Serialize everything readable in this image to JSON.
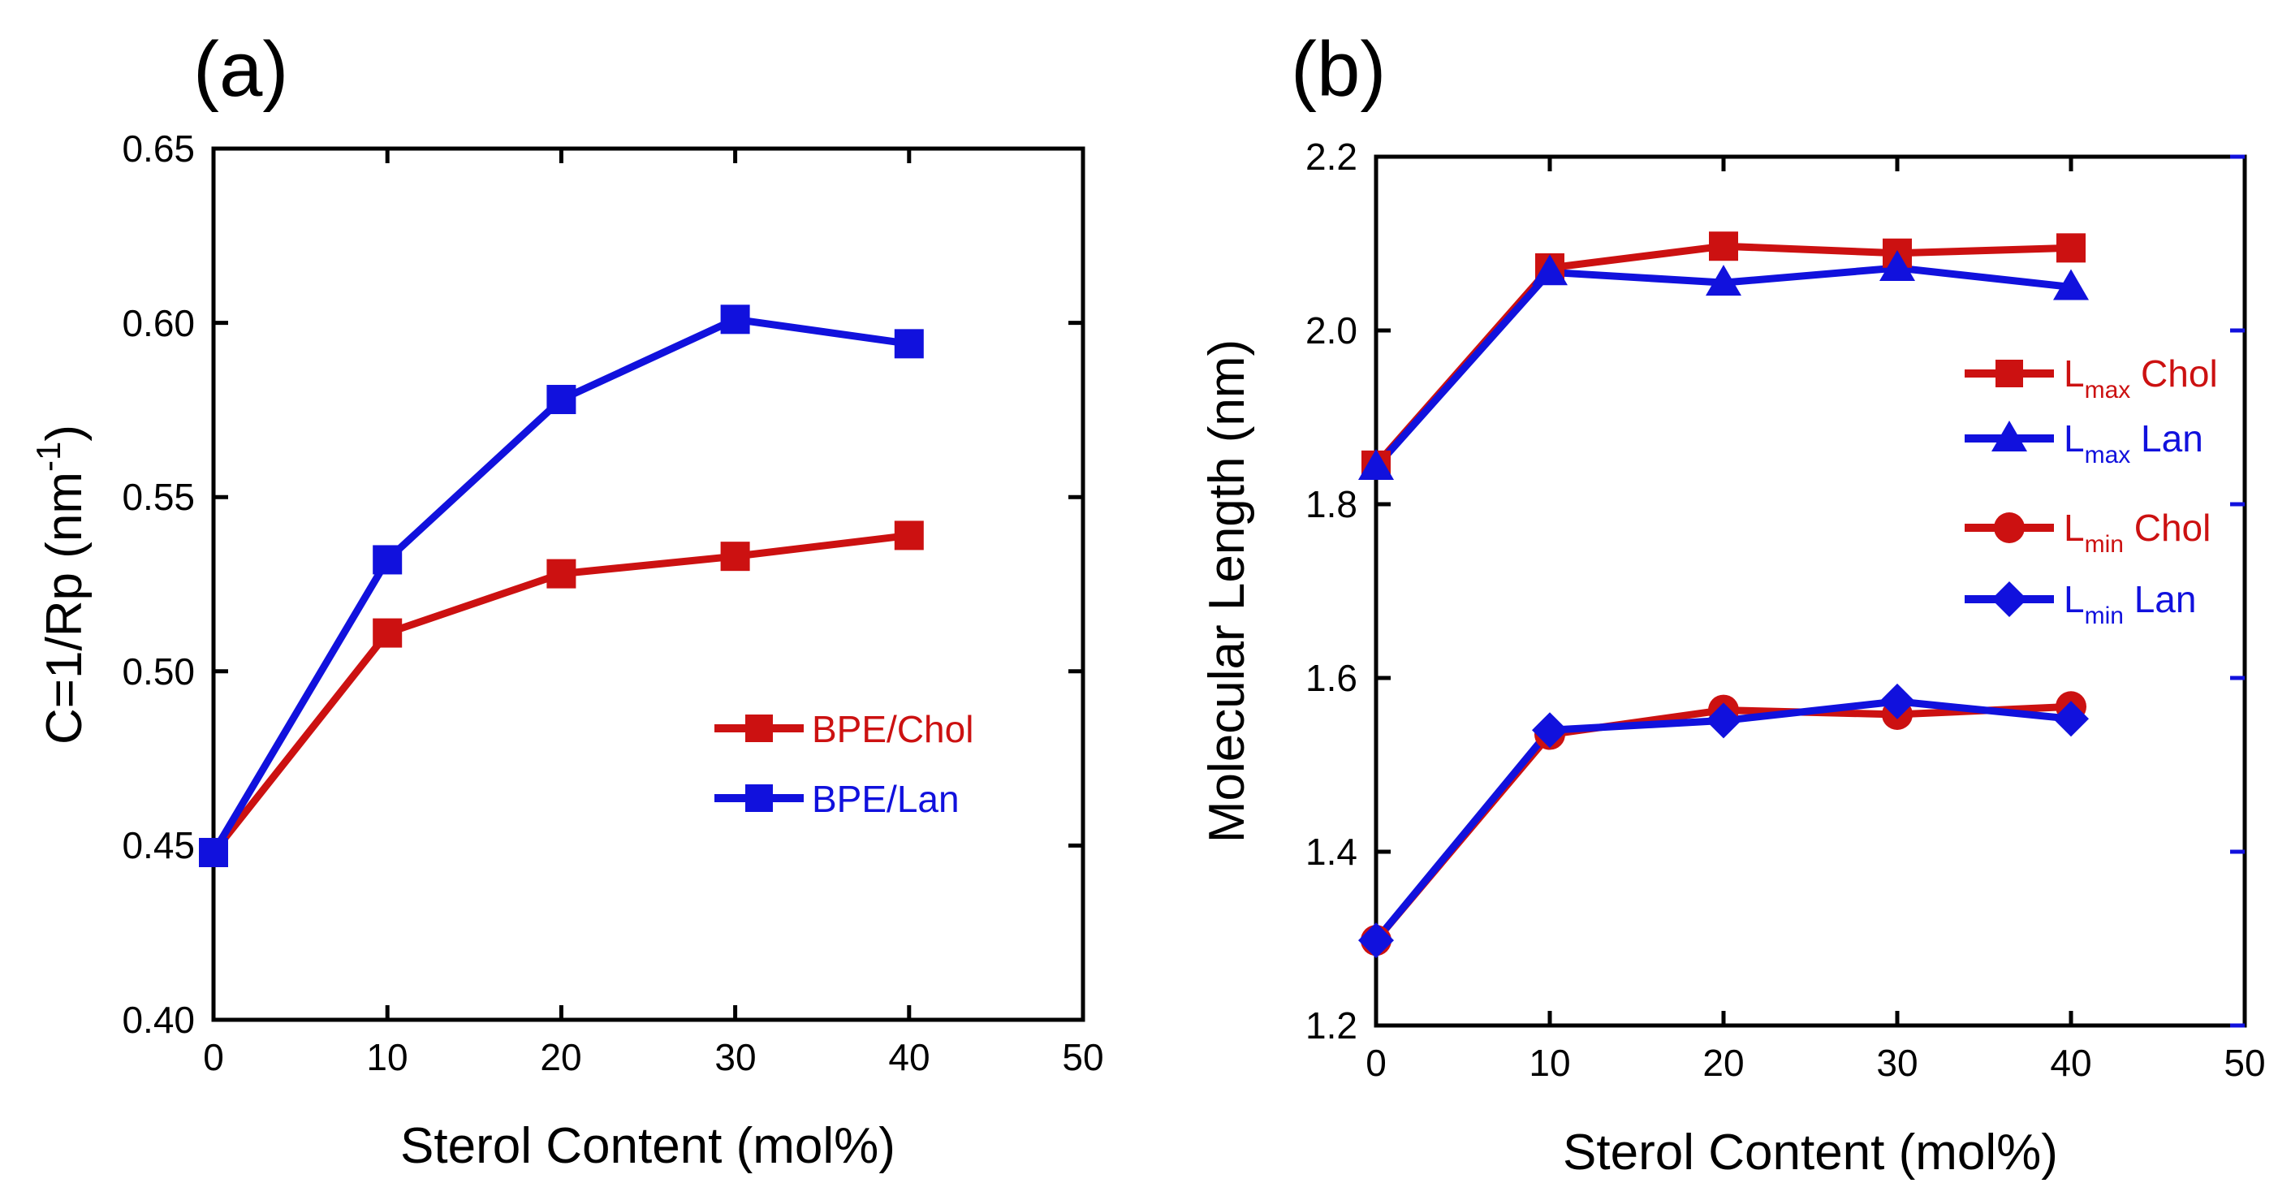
{
  "chart_data": [
    {
      "type": "line",
      "panel_label": "(a)",
      "title": "",
      "xlabel": "Sterol Content (mol%)",
      "ylabel_main": "C=1/Rp  (nm",
      "ylabel_sup": "-1",
      "ylabel_close": ")",
      "xlim": [
        0,
        50
      ],
      "ylim": [
        0.4,
        0.65
      ],
      "xticks": [
        "0",
        "10",
        "20",
        "30",
        "40",
        "50"
      ],
      "yticks": [
        "0.40",
        "0.45",
        "0.50",
        "0.55",
        "0.60",
        "0.65"
      ],
      "grid": false,
      "legend_position": "center-right",
      "x": [
        0,
        10,
        20,
        30,
        40
      ],
      "series": [
        {
          "name": "BPE/Chol",
          "color": "#cc1111",
          "marker": "square",
          "values": [
            0.448,
            0.511,
            0.528,
            0.533,
            0.539
          ]
        },
        {
          "name": "BPE/Lan",
          "color": "#1111dd",
          "marker": "square",
          "values": [
            0.448,
            0.532,
            0.578,
            0.601,
            0.594
          ]
        }
      ]
    },
    {
      "type": "line",
      "panel_label": "(b)",
      "title": "",
      "xlabel": "Sterol Content (mol%)",
      "ylabel": "Molecular Length (nm)",
      "xlim": [
        0,
        50
      ],
      "ylim": [
        1.2,
        2.2
      ],
      "xticks": [
        "0",
        "10",
        "20",
        "30",
        "40",
        "50"
      ],
      "yticks": [
        "1.2",
        "1.4",
        "1.6",
        "1.8",
        "2.0",
        "2.2"
      ],
      "grid": false,
      "legend_position": "right",
      "x": [
        0,
        10,
        20,
        30,
        40
      ],
      "series": [
        {
          "name": "L",
          "sub": "max",
          "suffix": " Chol",
          "color": "#cc1111",
          "marker": "square",
          "values": [
            1.845,
            2.072,
            2.097,
            2.089,
            2.095
          ]
        },
        {
          "name": "L",
          "sub": "max",
          "suffix": " Lan",
          "color": "#1111dd",
          "marker": "triangle",
          "values": [
            1.843,
            2.067,
            2.055,
            2.072,
            2.05
          ]
        },
        {
          "name": "L",
          "sub": "min",
          "suffix": " Chol",
          "color": "#cc1111",
          "marker": "circle",
          "values": [
            1.298,
            1.535,
            1.563,
            1.558,
            1.567
          ]
        },
        {
          "name": "L",
          "sub": "min",
          "suffix": " Lan",
          "color": "#1111dd",
          "marker": "diamond",
          "values": [
            1.298,
            1.54,
            1.551,
            1.573,
            1.553
          ]
        }
      ]
    }
  ]
}
